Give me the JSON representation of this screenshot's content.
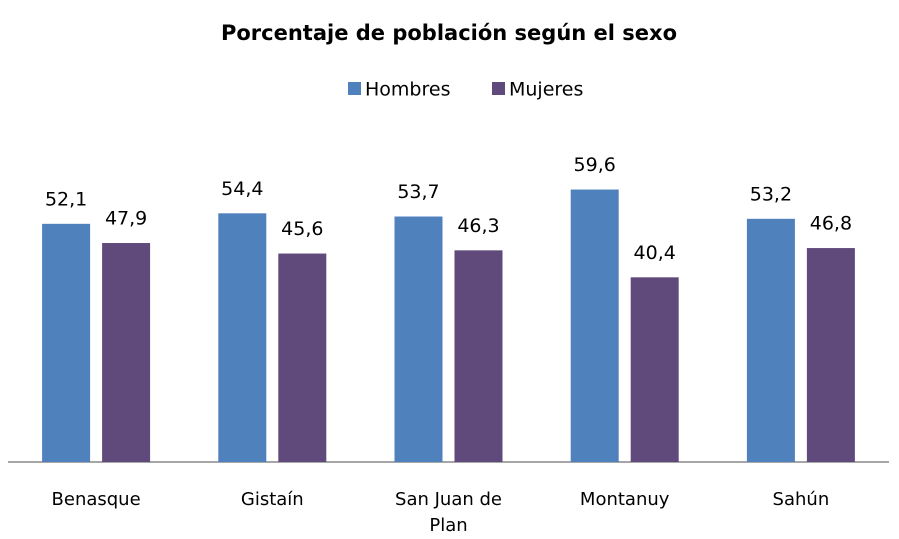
{
  "chart_data": {
    "type": "bar",
    "title": "Porcentaje de población según el sexo",
    "categories": [
      "Benasque",
      "Gistaín",
      "San Juan de Plan",
      "Montanuy",
      "Sahún"
    ],
    "series": [
      {
        "name": "Hombres",
        "color": "#4f81bd",
        "values": [
          52.1,
          54.4,
          53.7,
          59.6,
          53.2
        ],
        "value_labels": [
          "52,1",
          "54,4",
          "53,7",
          "59,6",
          "53,2"
        ]
      },
      {
        "name": "Mujeres",
        "color": "#604a7b",
        "values": [
          47.9,
          45.6,
          46.3,
          40.4,
          46.8
        ],
        "value_labels": [
          "47,9",
          "45,6",
          "46,3",
          "40,4",
          "46,8"
        ]
      }
    ],
    "ylim": [
      0,
      70
    ],
    "legend": "top"
  }
}
